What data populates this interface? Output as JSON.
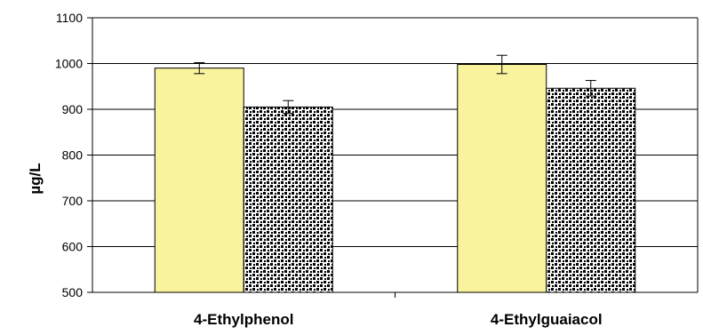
{
  "chart_data": {
    "type": "bar",
    "categories": [
      "4-Ethylphenol",
      "4-Ethylguaiacol"
    ],
    "series": [
      {
        "values": [
          990,
          998
        ],
        "errors": [
          12,
          20
        ],
        "color": "#f9f39e",
        "pattern": "solid"
      },
      {
        "values": [
          905,
          946
        ],
        "errors": [
          14,
          17
        ],
        "color": "#ffffff",
        "pattern": "black-dot-stipple"
      }
    ],
    "title": "",
    "xlabel": "",
    "ylabel": "µg/L",
    "ylim": [
      500,
      1100
    ],
    "yticks": [
      500,
      600,
      700,
      800,
      900,
      1000,
      1100
    ],
    "ytick_labels": [
      "500",
      "600",
      "700",
      "800",
      "900",
      "1000",
      "1100"
    ],
    "grid": true,
    "legend": "none"
  }
}
